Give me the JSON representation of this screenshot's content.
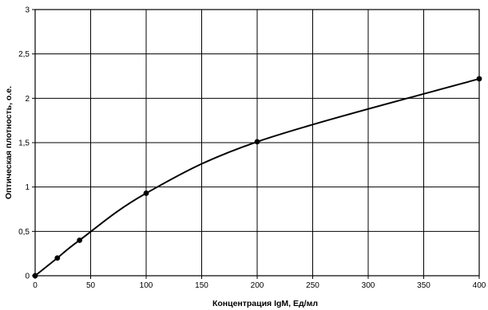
{
  "chart_data": {
    "type": "line",
    "title": "",
    "xlabel": "Концентрация IgM, Ед/мл",
    "ylabel": "Оптическая плотность, о.е.",
    "xlim": [
      0,
      400
    ],
    "ylim": [
      0,
      3
    ],
    "xticks": [
      0,
      50,
      100,
      150,
      200,
      250,
      300,
      350,
      400
    ],
    "yticks": [
      0,
      0.5,
      1,
      1.5,
      2,
      2.5,
      3
    ],
    "xtick_labels": [
      "0",
      "50",
      "100",
      "150",
      "200",
      "250",
      "300",
      "350",
      "400"
    ],
    "ytick_labels": [
      "0",
      "0,5",
      "1",
      "1,5",
      "2",
      "2,5",
      "3"
    ],
    "grid": true,
    "legend": "none",
    "series": [
      {
        "color": "#000000",
        "marker": "filled-circle",
        "smooth": true,
        "points": [
          {
            "x": 0,
            "y": 0.0
          },
          {
            "x": 20,
            "y": 0.2
          },
          {
            "x": 40,
            "y": 0.4
          },
          {
            "x": 100,
            "y": 0.93
          },
          {
            "x": 200,
            "y": 1.51
          },
          {
            "x": 400,
            "y": 2.22
          }
        ]
      }
    ]
  }
}
